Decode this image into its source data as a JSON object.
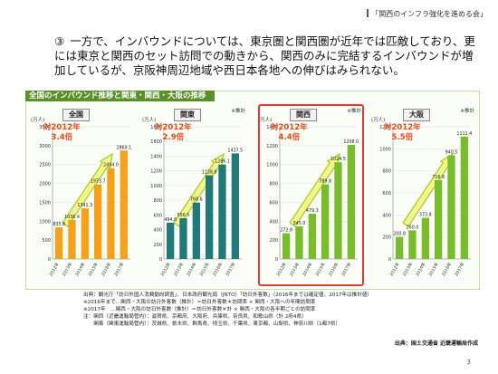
{
  "header": {
    "title": "「関西のインフラ強化を進める会」"
  },
  "intro": {
    "number": "③",
    "text": "一方で、インバウンドについては、東京圏と関西圏が近年では匹敵しており、更には東京と関西のセット訪問での動きから、関西のみに完結するインバウンドが増加しているが、京阪神周辺地域や西日本各地への伸びはみられない。"
  },
  "panel": {
    "title": "全国のインバウンド推移と関東・関西・大阪の推移"
  },
  "colors": {
    "accent_green": "#5a8f2a",
    "ratio_orange": "#e54b1a",
    "highlight_red": "#e53935",
    "bar_orange": "#f7a11a",
    "bar_teal": "#217a77",
    "bar_green": "#79bd2c"
  },
  "chart_data": [
    {
      "type": "bar",
      "title": "全国",
      "unit": "(万人)",
      "ratio_label": "対2012年",
      "ratio_value": "3.4倍",
      "note_mark": "",
      "categories": [
        "2012年",
        "2013年",
        "2014年",
        "2015年",
        "2016年",
        "2017年"
      ],
      "values": [
        835.8,
        1036.4,
        1341.3,
        1973.7,
        2404.0,
        2869.1
      ],
      "value_labels": [
        "835.8",
        "1036.4",
        "1341.3",
        "1973.7",
        "2404.0",
        "2869.1"
      ],
      "yticks": [
        "0",
        "500",
        "1000",
        "1500",
        "2000",
        "2500",
        "3000",
        "3500"
      ],
      "ylim": [
        0,
        3500
      ],
      "color": "#f7a11a"
    },
    {
      "type": "bar",
      "title": "関東",
      "unit": "(万人)",
      "ratio_label": "対2012年",
      "ratio_value": "2.9倍",
      "note_mark": "※推計",
      "categories": [
        "2012年",
        "2013年",
        "2014年",
        "2015年",
        "2016年",
        "2017年"
      ],
      "values": [
        494.8,
        556.5,
        768.6,
        1138.8,
        1286.1,
        1437.5
      ],
      "value_labels": [
        "494.8",
        "556.5",
        "768.6",
        "1138.8",
        "1286.1",
        "1437.5"
      ],
      "yticks": [
        "0",
        "200",
        "400",
        "600",
        "800",
        "1000",
        "1200",
        "1400",
        "1600",
        "1800"
      ],
      "ylim": [
        0,
        1800
      ],
      "color": "#217a77"
    },
    {
      "type": "bar",
      "title": "関西",
      "unit": "(万人)",
      "ratio_label": "対2012年",
      "ratio_value": "4.4倍",
      "note_mark": "※推計",
      "categories": [
        "2012年",
        "2013年",
        "2014年",
        "2015年",
        "2016年",
        "2017年"
      ],
      "values": [
        272.8,
        345.0,
        479.3,
        789.8,
        1024.5,
        1208.0
      ],
      "value_labels": [
        "272.8",
        "345.0",
        "479.3",
        "789.8",
        "1024.5",
        "1208.0"
      ],
      "yticks": [
        "0",
        "200",
        "400",
        "600",
        "800",
        "1000",
        "1200",
        "1400"
      ],
      "ylim": [
        0,
        1400
      ],
      "color": "#79bd2c"
    },
    {
      "type": "bar",
      "title": "大阪",
      "unit": "(万人)",
      "ratio_label": "対2012年",
      "ratio_value": "5.5倍",
      "note_mark": "※推計",
      "categories": [
        "2012年",
        "2013年",
        "2014年",
        "2015年",
        "2016年",
        "2017年"
      ],
      "values": [
        200.8,
        260.0,
        373.8,
        716.8,
        940.5,
        1111.4
      ],
      "value_labels": [
        "200.8",
        "260.0",
        "373.8",
        "716.8",
        "940.5",
        "1111.4"
      ],
      "yticks": [
        "0",
        "200",
        "400",
        "600",
        "800",
        "1000",
        "1200"
      ],
      "ylim": [
        0,
        1200
      ],
      "color": "#79bd2c"
    }
  ],
  "sources": {
    "line1": "出典：観光庁「訪日外国人消費動向調査」、日本政府観光局（JNTO）「訪日外客数」（2016年までは確定値、2017年は推計値）",
    "line2": "※2016年まで…関西・大阪の訪日外客数（推計）＝訪日外客数＊訪問率 × 関西・大阪への年間訪問率",
    "line3": "※2017年　…関西・大阪の訪日外客数（推計）＝訪日外客数＊計 × 関西・大阪の各半期ごとの訪問率",
    "line4": "注：関西（近畿運輸局管内）：滋賀県、京都府、大阪府、兵庫県、奈良県、和歌山県（計 2府4県）",
    "line5": "　　関東（関東運輸局管内）：茨城県、栃木県、群馬県、埼玉県、千葉県、東京都、山梨県、神奈川県（1都7県）"
  },
  "credit": "出典：国土交通省 近畿運輸局作成",
  "page_number": "3"
}
